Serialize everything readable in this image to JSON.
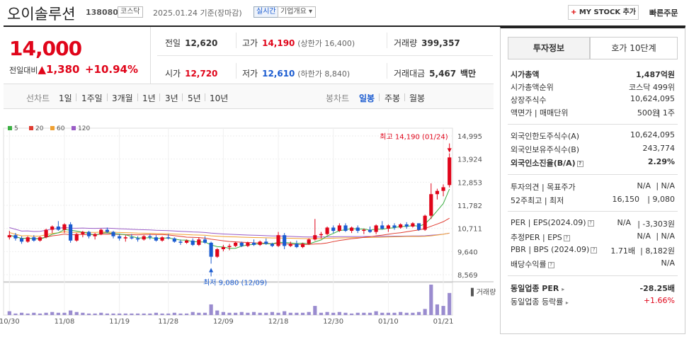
{
  "header": {
    "name": "오이솔루션",
    "code": "138080",
    "market": "코스닥",
    "date": "2025.01.24 기준(장마감)",
    "realtime": "실시간",
    "company_info": "기업개요",
    "mystock_label": "MY STOCK 추가",
    "quick_order": "빠른주문"
  },
  "price": {
    "current": "14,000",
    "change_label": "전일대비",
    "change": "1,380",
    "change_pct": "+10.94%"
  },
  "stats": {
    "prev_label": "전일",
    "prev": "12,620",
    "high_label": "고가",
    "high": "14,190",
    "upper_limit": "(상한가 16,400)",
    "volume_label": "거래량",
    "volume": "399,357",
    "open_label": "시가",
    "open": "12,720",
    "low_label": "저가",
    "low": "12,610",
    "lower_limit": "(하한가 8,840)",
    "amount_label": "거래대금",
    "amount": "5,467",
    "amount_unit": "백만"
  },
  "tabs": {
    "line": "선차트",
    "d1": "1일",
    "w1": "1주일",
    "m3": "3개월",
    "y1": "1년",
    "y3": "3년",
    "y5": "5년",
    "y10": "10년",
    "candle": "봉차트",
    "daily": "일봉",
    "weekly": "주봉",
    "monthly": "월봉"
  },
  "chart_data": {
    "type": "candlestick",
    "ma_legend": [
      {
        "name": "5",
        "color": "#3cb043"
      },
      {
        "name": "20",
        "color": "#e03c31"
      },
      {
        "name": "60",
        "color": "#f0a030"
      },
      {
        "name": "120",
        "color": "#9a5cc6"
      }
    ],
    "y_ticks": [
      "14,995",
      "13,924",
      "12,853",
      "11,782",
      "10,711",
      "9,640",
      "8,569"
    ],
    "y_range": [
      8569,
      14995
    ],
    "x_labels": [
      "10/30",
      "11/08",
      "11/19",
      "11/28",
      "12/09",
      "12/18",
      "12/30",
      "01/10",
      "01/21"
    ],
    "high_annotation": "최고 14,190 (01/24)",
    "low_annotation": "최저 9,080 (12/09)",
    "volume_label": "거래량",
    "candles": [
      [
        10300,
        10600,
        10200,
        10400
      ],
      [
        10400,
        10500,
        10150,
        10250
      ],
      [
        10250,
        10350,
        10000,
        10100
      ],
      [
        10100,
        10350,
        10050,
        10300
      ],
      [
        10300,
        10400,
        10100,
        10150
      ],
      [
        10150,
        10350,
        10100,
        10300
      ],
      [
        10300,
        10700,
        10250,
        10650
      ],
      [
        10650,
        10850,
        10500,
        10800
      ],
      [
        10800,
        11050,
        10600,
        10650
      ],
      [
        10650,
        10950,
        10500,
        10900
      ],
      [
        10900,
        11000,
        10050,
        10150
      ],
      [
        10150,
        10500,
        10100,
        10450
      ],
      [
        10450,
        10600,
        10300,
        10550
      ],
      [
        10550,
        10600,
        10250,
        10350
      ],
      [
        10350,
        10500,
        10200,
        10450
      ],
      [
        10450,
        10700,
        10400,
        10650
      ],
      [
        10650,
        10750,
        10500,
        10550
      ],
      [
        10550,
        10600,
        10250,
        10350
      ],
      [
        10350,
        10450,
        10150,
        10250
      ],
      [
        10250,
        10400,
        10100,
        10300
      ],
      [
        10300,
        10450,
        10200,
        10250
      ],
      [
        10250,
        10350,
        10100,
        10200
      ],
      [
        10200,
        10400,
        10150,
        10350
      ],
      [
        10350,
        10450,
        10200,
        10300
      ],
      [
        10300,
        10400,
        10100,
        10150
      ],
      [
        10150,
        10350,
        10100,
        10300
      ],
      [
        10300,
        10450,
        10200,
        10250
      ],
      [
        10250,
        10300,
        10050,
        10100
      ],
      [
        10100,
        10200,
        9950,
        10050
      ],
      [
        10050,
        10200,
        10000,
        10150
      ],
      [
        10150,
        10250,
        9900,
        9950
      ],
      [
        9950,
        10300,
        9900,
        10200
      ],
      [
        10200,
        10350,
        10000,
        10050
      ],
      [
        10050,
        10100,
        9080,
        9400
      ],
      [
        9400,
        9800,
        9350,
        9750
      ],
      [
        9750,
        9950,
        9650,
        9850
      ],
      [
        9850,
        10000,
        9700,
        9900
      ],
      [
        9900,
        10100,
        9850,
        10050
      ],
      [
        10050,
        10100,
        9850,
        9900
      ],
      [
        9900,
        10100,
        9850,
        10050
      ],
      [
        10050,
        10200,
        9900,
        9950
      ],
      [
        9950,
        10150,
        9900,
        10100
      ],
      [
        10100,
        10250,
        9950,
        10000
      ],
      [
        10000,
        10050,
        9850,
        9900
      ],
      [
        9900,
        10550,
        9850,
        10400
      ],
      [
        10400,
        10500,
        9750,
        9900
      ],
      [
        9900,
        10100,
        9850,
        10000
      ],
      [
        10000,
        10150,
        9800,
        9850
      ],
      [
        9850,
        10050,
        9800,
        10000
      ],
      [
        10000,
        10250,
        9950,
        10200
      ],
      [
        10200,
        11150,
        10150,
        10400
      ],
      [
        10400,
        10550,
        10250,
        10450
      ],
      [
        10450,
        10800,
        10400,
        10750
      ],
      [
        10750,
        10850,
        10500,
        10600
      ],
      [
        10600,
        10950,
        10550,
        10850
      ],
      [
        10850,
        10950,
        10550,
        10600
      ],
      [
        10600,
        10800,
        10500,
        10750
      ],
      [
        10750,
        10850,
        10500,
        10600
      ],
      [
        10600,
        10700,
        10450,
        10650
      ],
      [
        10650,
        10800,
        10500,
        10550
      ],
      [
        10550,
        10900,
        10450,
        10850
      ],
      [
        10850,
        11050,
        10650,
        10700
      ],
      [
        10700,
        10900,
        10550,
        10850
      ],
      [
        10850,
        10950,
        10650,
        10750
      ],
      [
        10750,
        10950,
        10700,
        10900
      ],
      [
        10900,
        11000,
        10700,
        10800
      ],
      [
        10800,
        11000,
        10750,
        10950
      ],
      [
        10950,
        10950,
        10600,
        10650
      ],
      [
        10650,
        11350,
        10600,
        11300
      ],
      [
        11300,
        12800,
        11150,
        12300
      ],
      [
        12300,
        12550,
        12050,
        12450
      ],
      [
        12450,
        12750,
        12200,
        12620
      ],
      [
        12720,
        14190,
        12610,
        14000
      ]
    ],
    "volumes": [
      5,
      2,
      3,
      2,
      3,
      2,
      3,
      4,
      3,
      3,
      6,
      4,
      3,
      2,
      2,
      3,
      2,
      2,
      2,
      2,
      2,
      2,
      2,
      2,
      3,
      2,
      2,
      3,
      2,
      2,
      4,
      3,
      3,
      14,
      6,
      4,
      3,
      3,
      4,
      3,
      4,
      3,
      3,
      4,
      3,
      5,
      3,
      3,
      3,
      4,
      12,
      3,
      4,
      3,
      4,
      3,
      2,
      3,
      3,
      3,
      5,
      3,
      3,
      3,
      4,
      3,
      3,
      4,
      8,
      40,
      14,
      12,
      29
    ]
  },
  "side": {
    "tab_invest": "투자정보",
    "tab_hoga": "호가 10단계",
    "mktcap_label": "시가총액",
    "mktcap": "1,487억원",
    "mktcap_rank_label": "시가총액순위",
    "mktcap_rank": "코스닥 499위",
    "shares_label": "상장주식수",
    "shares": "10,624,095",
    "par_label": "액면가 | 매매단위",
    "par": "500원",
    "unit": "1주",
    "foreign_limit_label": "외국인한도주식수(A)",
    "foreign_limit": "10,624,095",
    "foreign_hold_label": "외국인보유주식수(B)",
    "foreign_hold": "243,774",
    "foreign_ratio_label": "외국인소진율(B/A)",
    "foreign_ratio": "2.29%",
    "opinion_label": "투자의견 | 목표주가",
    "opinion": "N/A",
    "target": "N/A",
    "w52_label": "52주최고 | 최저",
    "w52_high": "16,150",
    "w52_low": "9,080",
    "per_label": "PER | EPS(2024.09)",
    "per": "N/A",
    "eps": "-3,303원",
    "est_label": "추정PER | EPS",
    "est_per": "N/A",
    "est_eps": "N/A",
    "pbr_label": "PBR | BPS (2024.09)",
    "pbr": "1.71배",
    "bps": "8,182원",
    "div_label": "배당수익률",
    "div": "N/A",
    "ind_per_label": "동일업종 PER",
    "ind_per": "-28.25배",
    "ind_rate_label": "동일업종 등락률",
    "ind_rate": "+1.66%"
  }
}
